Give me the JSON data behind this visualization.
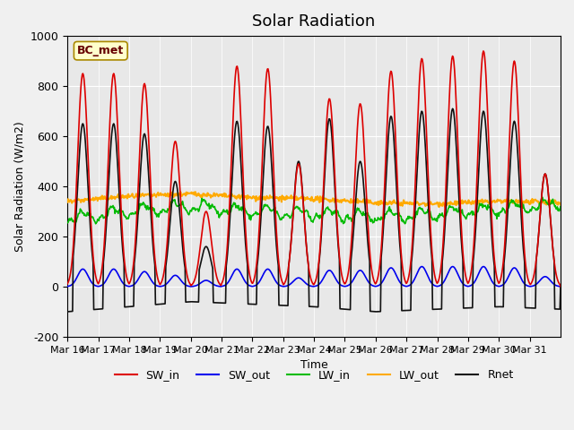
{
  "title": "Solar Radiation",
  "ylabel": "Solar Radiation (W/m2)",
  "xlabel": "Time",
  "ylim": [
    -200,
    1000
  ],
  "background_color": "#e8e8e8",
  "fig_facecolor": "#f0f0f0",
  "legend_label": "BC_met",
  "series": {
    "SW_in": {
      "color": "#dd0000",
      "lw": 1.2
    },
    "SW_out": {
      "color": "#0000ee",
      "lw": 1.2
    },
    "LW_in": {
      "color": "#00bb00",
      "lw": 1.2
    },
    "LW_out": {
      "color": "#ffaa00",
      "lw": 1.5
    },
    "Rnet": {
      "color": "#111111",
      "lw": 1.2
    }
  },
  "xtick_labels": [
    "Mar 16",
    "Mar 17",
    "Mar 18",
    "Mar 19",
    "Mar 20",
    "Mar 21",
    "Mar 22",
    "Mar 23",
    "Mar 24",
    "Mar 25",
    "Mar 26",
    "Mar 27",
    "Mar 28",
    "Mar 29",
    "Mar 30",
    "Mar 31"
  ],
  "ytick_labels": [
    "-200",
    "0",
    "200",
    "400",
    "600",
    "800",
    "1000"
  ],
  "ytick_values": [
    -200,
    0,
    200,
    400,
    600,
    800,
    1000
  ],
  "n_days": 16,
  "pts_per_day": 48,
  "sw_in_peaks": [
    850,
    850,
    810,
    580,
    300,
    880,
    870,
    490,
    750,
    730,
    860,
    910,
    920,
    940,
    900,
    450
  ],
  "sw_out_peaks": [
    70,
    70,
    60,
    45,
    25,
    70,
    70,
    35,
    65,
    65,
    75,
    80,
    80,
    80,
    75,
    40
  ],
  "rnet_peaks": [
    650,
    650,
    610,
    420,
    160,
    660,
    640,
    500,
    670,
    500,
    680,
    700,
    710,
    700,
    660,
    450
  ],
  "lw_in_base_x": [
    0,
    2,
    4,
    6,
    8,
    10,
    12,
    14,
    16
  ],
  "lw_in_base_y": [
    250,
    280,
    300,
    280,
    270,
    260,
    270,
    290,
    310
  ],
  "lw_out_base_x": [
    0,
    2,
    4,
    6,
    8,
    10,
    12,
    14,
    16
  ],
  "lw_out_base_y": [
    340,
    360,
    370,
    355,
    350,
    335,
    330,
    340,
    335
  ],
  "rnet_night_x": [
    0,
    2,
    4,
    6,
    8,
    10,
    12,
    14,
    16
  ],
  "rnet_night_y": [
    -100,
    -80,
    -60,
    -70,
    -80,
    -100,
    -90,
    -80,
    -90
  ]
}
